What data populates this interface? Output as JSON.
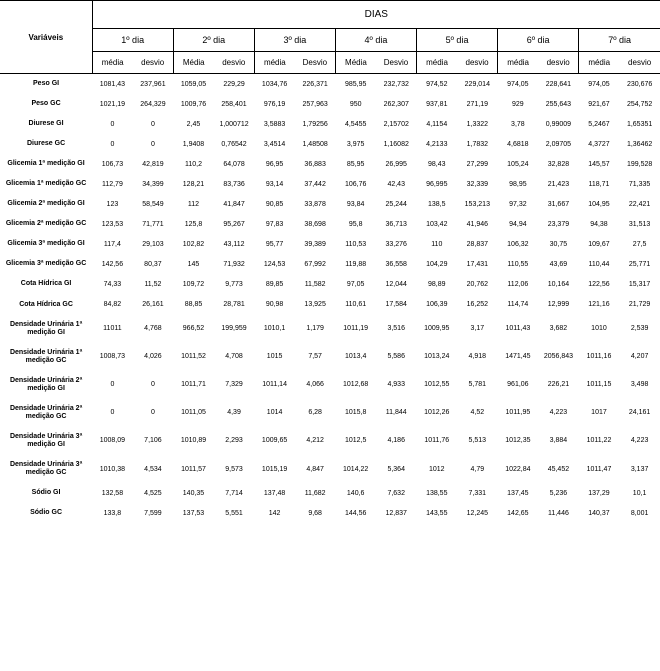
{
  "title_days": "DIAS",
  "var_header": "Variáveis",
  "day_labels": [
    "1º dia",
    "2º dia",
    "3º dia",
    "4º dia",
    "5º dia",
    "6º dia",
    "7º dia"
  ],
  "sub_labels_pairs": [
    [
      "média",
      "desvio"
    ],
    [
      "Média",
      "desvio"
    ],
    [
      "média",
      "Desvio"
    ],
    [
      "Média",
      "Desvio"
    ],
    [
      "média",
      "desvio"
    ],
    [
      "média",
      "desvio"
    ],
    [
      "média",
      "desvio"
    ]
  ],
  "rows": [
    {
      "label": "Peso GI",
      "values": [
        "1081,43",
        "237,961",
        "1059,05",
        "229,29",
        "1034,76",
        "226,371",
        "985,95",
        "232,732",
        "974,52",
        "229,014",
        "974,05",
        "228,641",
        "974,05",
        "230,676"
      ]
    },
    {
      "label": "Peso GC",
      "values": [
        "1021,19",
        "264,329",
        "1009,76",
        "258,401",
        "976,19",
        "257,963",
        "950",
        "262,307",
        "937,81",
        "271,19",
        "929",
        "255,643",
        "921,67",
        "254,752"
      ]
    },
    {
      "label": "Diurese GI",
      "values": [
        "0",
        "0",
        "2,45",
        "1,000712",
        "3,5883",
        "1,79256",
        "4,5455",
        "2,15702",
        "4,1154",
        "1,3322",
        "3,78",
        "0,99009",
        "5,2467",
        "1,65351"
      ]
    },
    {
      "label": "Diurese GC",
      "values": [
        "0",
        "0",
        "1,9408",
        "0,76542",
        "3,4514",
        "1,48508",
        "3,975",
        "1,16082",
        "4,2133",
        "1,7832",
        "4,6818",
        "2,09705",
        "4,3727",
        "1,36462"
      ]
    },
    {
      "label": "Glicemia 1ª medição GI",
      "values": [
        "106,73",
        "42,819",
        "110,2",
        "64,078",
        "96,95",
        "36,883",
        "85,95",
        "26,995",
        "98,43",
        "27,299",
        "105,24",
        "32,828",
        "145,57",
        "199,528"
      ]
    },
    {
      "label": "Glicemia 1ª medição GC",
      "values": [
        "112,79",
        "34,399",
        "128,21",
        "83,736",
        "93,14",
        "37,442",
        "106,76",
        "42,43",
        "96,995",
        "32,339",
        "98,95",
        "21,423",
        "118,71",
        "71,335"
      ]
    },
    {
      "label": "Glicemia 2ª medição GI",
      "values": [
        "123",
        "58,549",
        "112",
        "41,847",
        "90,85",
        "33,878",
        "93,84",
        "25,244",
        "138,5",
        "153,213",
        "97,32",
        "31,667",
        "104,95",
        "22,421"
      ]
    },
    {
      "label": "Glicemia 2ª medição GC",
      "values": [
        "123,53",
        "71,771",
        "125,8",
        "95,267",
        "97,83",
        "38,698",
        "95,8",
        "36,713",
        "103,42",
        "41,946",
        "94,94",
        "23,379",
        "94,38",
        "31,513"
      ]
    },
    {
      "label": "Glicemia 3ª medição GI",
      "values": [
        "117,4",
        "29,103",
        "102,82",
        "43,112",
        "95,77",
        "39,389",
        "110,53",
        "33,276",
        "110",
        "28,837",
        "106,32",
        "30,75",
        "109,67",
        "27,5"
      ]
    },
    {
      "label": "Glicemia 3ª medição GC",
      "values": [
        "142,56",
        "80,37",
        "145",
        "71,932",
        "124,53",
        "67,992",
        "119,88",
        "36,558",
        "104,29",
        "17,431",
        "110,55",
        "43,69",
        "110,44",
        "25,771"
      ]
    },
    {
      "label": "Cota Hídrica GI",
      "values": [
        "74,33",
        "11,52",
        "109,72",
        "9,773",
        "89,85",
        "11,582",
        "97,05",
        "12,044",
        "98,89",
        "20,762",
        "112,06",
        "10,164",
        "122,56",
        "15,317"
      ]
    },
    {
      "label": "Cota Hídrica GC",
      "values": [
        "84,82",
        "26,161",
        "88,85",
        "28,781",
        "90,98",
        "13,925",
        "110,61",
        "17,584",
        "106,39",
        "16,252",
        "114,74",
        "12,999",
        "121,16",
        "21,729"
      ]
    },
    {
      "label": "Densidade Urinária 1ª medição GI",
      "values": [
        "11011",
        "4,768",
        "966,52",
        "199,959",
        "1010,1",
        "1,179",
        "1011,19",
        "3,516",
        "1009,95",
        "3,17",
        "1011,43",
        "3,682",
        "1010",
        "2,539"
      ]
    },
    {
      "label": "Densidade Urinária 1ª medição GC",
      "values": [
        "1008,73",
        "4,026",
        "1011,52",
        "4,708",
        "1015",
        "7,57",
        "1013,4",
        "5,586",
        "1013,24",
        "4,918",
        "1471,45",
        "2056,843",
        "1011,16",
        "4,207"
      ]
    },
    {
      "label": "Densidade Urinária 2ª medição GI",
      "values": [
        "0",
        "0",
        "1011,71",
        "7,329",
        "1011,14",
        "4,066",
        "1012,68",
        "4,933",
        "1012,55",
        "5,781",
        "961,06",
        "226,21",
        "1011,15",
        "3,498"
      ]
    },
    {
      "label": "Densidade Urinária 2ª medição GC",
      "values": [
        "0",
        "0",
        "1011,05",
        "4,39",
        "1014",
        "6,28",
        "1015,8",
        "11,844",
        "1012,26",
        "4,52",
        "1011,95",
        "4,223",
        "1017",
        "24,161"
      ]
    },
    {
      "label": "Densidade Urinária 3ª medição GI",
      "values": [
        "1008,09",
        "7,106",
        "1010,89",
        "2,293",
        "1009,65",
        "4,212",
        "1012,5",
        "4,186",
        "1011,76",
        "5,513",
        "1012,35",
        "3,884",
        "1011,22",
        "4,223"
      ]
    },
    {
      "label": "Densidade Urinária 3ª medição GC",
      "values": [
        "1010,38",
        "4,534",
        "1011,57",
        "9,573",
        "1015,19",
        "4,847",
        "1014,22",
        "5,364",
        "1012",
        "4,79",
        "1022,84",
        "45,452",
        "1011,47",
        "3,137"
      ]
    },
    {
      "label": "Sódio GI",
      "values": [
        "132,58",
        "4,525",
        "140,35",
        "7,714",
        "137,48",
        "11,682",
        "140,6",
        "7,632",
        "138,55",
        "7,331",
        "137,45",
        "5,236",
        "137,29",
        "10,1"
      ]
    },
    {
      "label": "Sódio GC",
      "values": [
        "133,8",
        "7,599",
        "137,53",
        "5,551",
        "142",
        "9,68",
        "144,56",
        "12,837",
        "143,55",
        "12,245",
        "142,65",
        "11,446",
        "140,37",
        "8,001"
      ]
    }
  ],
  "colors": {
    "border": "#000000",
    "background": "#ffffff",
    "text": "#000000"
  },
  "font": {
    "family": "Arial",
    "row_label_size_pt": 7,
    "cell_size_pt": 7,
    "header_size_pt": 10
  }
}
